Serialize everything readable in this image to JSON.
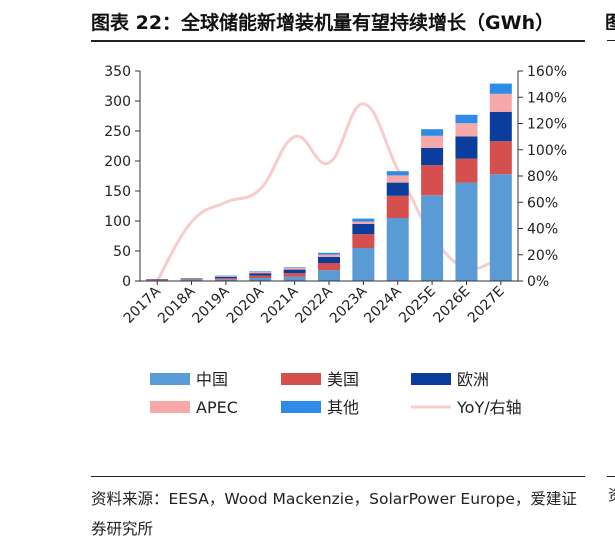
{
  "page": {
    "title": "图表 22：全球储能新增装机量有望持续增长（GWh）",
    "source": "资料来源：EESA，Wood Mackenzie，SolarPower Europe，爱建证券研究所",
    "edge_title_glyph": "图",
    "edge_source_glyph": "资"
  },
  "chart_data": {
    "type": "bar",
    "stacked": true,
    "title": "全球储能新增装机量有望持续增长（GWh）",
    "categories": [
      "2017A",
      "2018A",
      "2019A",
      "2020A",
      "2021A",
      "2022A",
      "2023A",
      "2024A",
      "2025E",
      "2026E",
      "2027E"
    ],
    "series": [
      {
        "name": "中国",
        "color": "#5b9bd5",
        "values": [
          1,
          2,
          3,
          5,
          7,
          18,
          55,
          105,
          143,
          164,
          178
        ]
      },
      {
        "name": "美国",
        "color": "#d64f4f",
        "values": [
          1,
          1,
          2,
          4,
          6,
          12,
          23,
          37,
          50,
          40,
          55
        ]
      },
      {
        "name": "欧洲",
        "color": "#0b3d9c",
        "values": [
          1,
          1,
          2,
          4,
          6,
          10,
          17,
          22,
          29,
          37,
          49
        ]
      },
      {
        "name": "APEC",
        "color": "#f7a8a8",
        "values": [
          0,
          1,
          1,
          2,
          3,
          4,
          4,
          12,
          20,
          22,
          30
        ]
      },
      {
        "name": "其他",
        "color": "#2e8be8",
        "values": [
          0,
          0,
          1,
          1,
          1,
          3,
          5,
          7,
          11,
          14,
          17
        ]
      }
    ],
    "line": {
      "name": "YoY/右轴",
      "color": "#f8cccc",
      "axis": "right",
      "values": [
        0,
        45,
        60,
        70,
        110,
        90,
        135,
        85,
        35,
        10,
        18
      ]
    },
    "y_left": {
      "min": 0,
      "max": 350,
      "ticks": [
        0,
        50,
        100,
        150,
        200,
        250,
        300,
        350
      ]
    },
    "y_right": {
      "min": 0,
      "max": 160,
      "ticks": [
        0,
        20,
        40,
        60,
        80,
        100,
        120,
        140,
        160
      ],
      "format": "percent"
    },
    "legend": {
      "placement": "bottom",
      "items": [
        {
          "name": "中国",
          "kind": "bar",
          "color": "#5b9bd5"
        },
        {
          "name": "美国",
          "kind": "bar",
          "color": "#d64f4f"
        },
        {
          "name": "欧洲",
          "kind": "bar",
          "color": "#0b3d9c"
        },
        {
          "name": "APEC",
          "kind": "bar",
          "color": "#f7a8a8"
        },
        {
          "name": "其他",
          "kind": "bar",
          "color": "#2e8be8"
        },
        {
          "name": "YoY/右轴",
          "kind": "line",
          "color": "#f8cccc"
        }
      ]
    },
    "grid": false
  }
}
